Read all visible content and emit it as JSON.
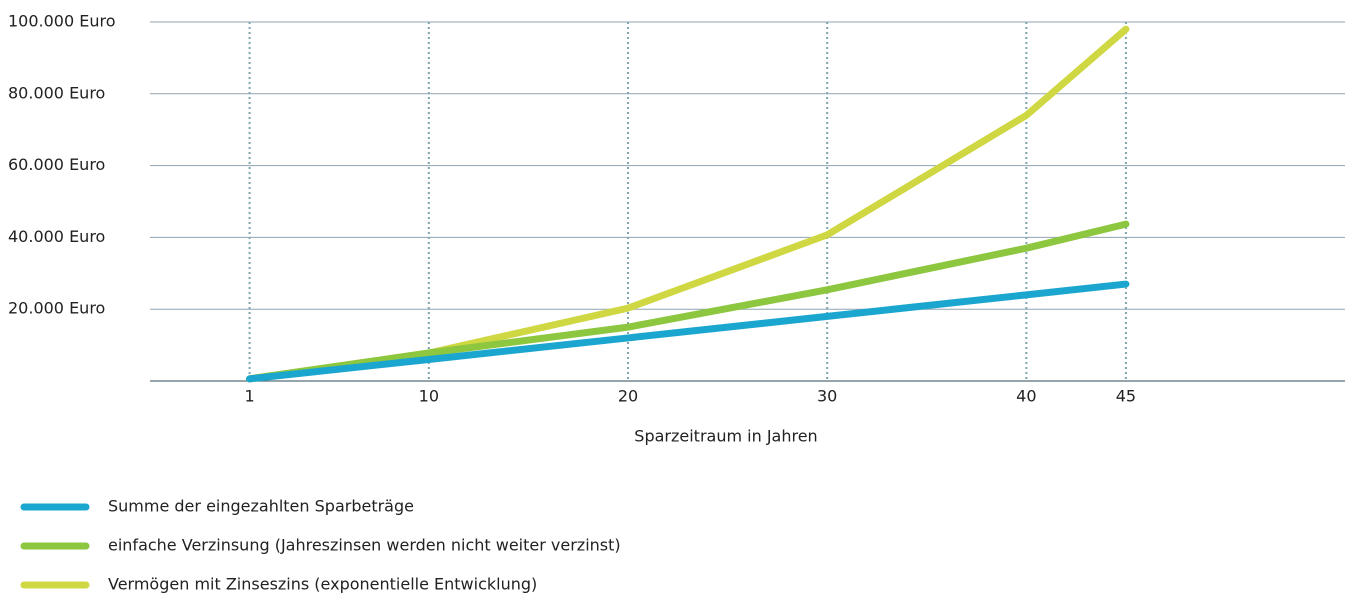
{
  "chart_data": {
    "type": "line",
    "x_label": "Sparzeitraum in Jahren",
    "x": [
      1,
      10,
      20,
      30,
      40,
      45
    ],
    "xlim": [
      -4,
      56
    ],
    "xticks": [
      1,
      10,
      20,
      30,
      40,
      45
    ],
    "ylim": [
      0,
      100000
    ],
    "yticks": [
      {
        "value": 20000,
        "label": "20.000 Euro"
      },
      {
        "value": 40000,
        "label": "40.000 Euro"
      },
      {
        "value": 60000,
        "label": "60.000 Euro"
      },
      {
        "value": 80000,
        "label": "80.000 Euro"
      },
      {
        "value": 100000,
        "label": "100.000 Euro"
      }
    ],
    "grid": true,
    "legend": "bottom",
    "series": [
      {
        "name": "Summe der eingezahlten Sparbeträge",
        "color": "#1ba6cf",
        "values": [
          600,
          6000,
          12000,
          18000,
          24000,
          27000
        ]
      },
      {
        "name": "einfache Verzinsung (Jahreszinsen werden nicht weiter verzinst)",
        "color": "#8dc63f",
        "values": [
          600,
          7800,
          15000,
          25400,
          37000,
          43700
        ]
      },
      {
        "name": "Vermögen mit Zinseszins (exponentielle Entwicklung)",
        "color": "#cfd843",
        "values": [
          600,
          7800,
          20300,
          40700,
          74000,
          98000
        ]
      }
    ]
  }
}
